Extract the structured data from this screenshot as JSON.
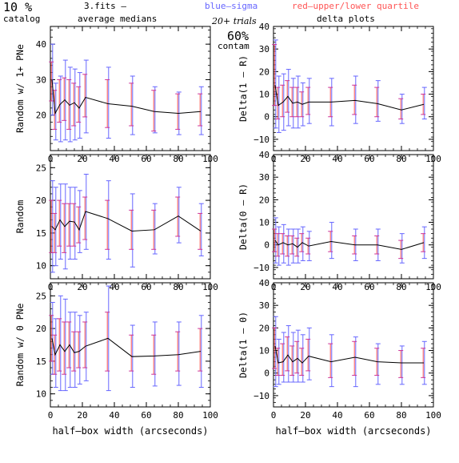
{
  "header": {
    "percent": "10 %",
    "catalog": "catalog",
    "fits": "3.fits  –",
    "avg": "average medians",
    "blue": "blue–sigma",
    "red": "red–upper/lower quartile",
    "trials": "20+ trials",
    "contam_pct": "60%",
    "contam": "contam",
    "delta": "delta plots"
  },
  "colors": {
    "blue": "#6666ff",
    "red": "#ff5555",
    "mag": "#cc3399",
    "line": "#000000"
  },
  "chart_data": [
    {
      "type": "line",
      "id": "p1",
      "ylabel": "Random w/ 1+ PNe",
      "xlabel": "",
      "xlim": [
        0,
        100
      ],
      "ylim": [
        10,
        45
      ],
      "xticks": [
        "0",
        "20",
        "40",
        "60",
        "80",
        "100"
      ],
      "yticks": [
        {
          "v": 20,
          "t": "20"
        },
        {
          "v": 30,
          "t": "30"
        },
        {
          "v": 40,
          "t": "40"
        }
      ],
      "x": [
        1,
        3,
        6,
        9,
        12,
        15,
        18,
        22,
        36,
        51,
        65,
        80,
        94
      ],
      "y": [
        30,
        20.5,
        23,
        24.3,
        22.8,
        23.5,
        22,
        25,
        23.2,
        22.5,
        21,
        20.5,
        21
      ],
      "sigma_lo": [
        20,
        13,
        12.5,
        13,
        12.5,
        13,
        13.5,
        15,
        13.5,
        14.5,
        15,
        14.5,
        14.5
      ],
      "sigma_hi": [
        40,
        29,
        31,
        35.5,
        33.5,
        33,
        32,
        35.5,
        33.5,
        31,
        28,
        26.5,
        28
      ],
      "q_lo": [
        24,
        16,
        18,
        18.5,
        16,
        17,
        18,
        19.5,
        16.5,
        17,
        15.5,
        16,
        17
      ],
      "q_hi": [
        35,
        27,
        30,
        30.5,
        30,
        29,
        28,
        31.5,
        30,
        29,
        27,
        26,
        26
      ]
    },
    {
      "type": "line",
      "id": "p2",
      "ylabel": "Delta(1 – R)",
      "xlabel": "",
      "xlim": [
        0,
        100
      ],
      "ylim": [
        -15,
        40
      ],
      "xticks": [
        "0",
        "20",
        "40",
        "60",
        "80",
        "100"
      ],
      "yticks": [
        {
          "v": -10,
          "t": "−10"
        },
        {
          "v": 0,
          "t": "0"
        },
        {
          "v": 10,
          "t": "10"
        },
        {
          "v": 20,
          "t": "20"
        },
        {
          "v": 30,
          "t": "30"
        },
        {
          "v": 40,
          "t": "40"
        }
      ],
      "x": [
        1,
        3,
        6,
        9,
        12,
        15,
        18,
        22,
        36,
        51,
        65,
        80,
        94
      ],
      "y": [
        14,
        5,
        6.5,
        9,
        6,
        6.5,
        5.5,
        6.5,
        6.5,
        7.2,
        5.8,
        3,
        5.5
      ],
      "sigma_lo": [
        -5,
        -7,
        -6,
        -4,
        -5,
        -5,
        -4,
        -3,
        -4,
        -3,
        -2,
        -3,
        -1
      ],
      "sigma_hi": [
        34,
        18,
        19,
        21,
        17,
        18,
        15,
        17,
        17,
        18,
        16,
        10,
        13
      ],
      "q_lo": [
        5,
        -1,
        0,
        2,
        0,
        0,
        0,
        1,
        0,
        1,
        0,
        -1,
        1
      ],
      "q_hi": [
        32,
        13,
        14,
        16,
        13,
        13,
        11,
        13,
        13,
        14,
        13,
        8,
        10
      ]
    },
    {
      "type": "line",
      "id": "p3",
      "ylabel": "Random",
      "xlabel": "",
      "xlim": [
        0,
        100
      ],
      "ylim": [
        8,
        27
      ],
      "xticks": [
        "0",
        "20",
        "40",
        "60",
        "80",
        "100"
      ],
      "yticks": [
        {
          "v": 10,
          "t": "10"
        },
        {
          "v": 15,
          "t": "15"
        },
        {
          "v": 20,
          "t": "20"
        },
        {
          "v": 25,
          "t": "25"
        }
      ],
      "x": [
        1,
        3,
        6,
        9,
        12,
        15,
        18,
        22,
        36,
        51,
        65,
        80,
        94
      ],
      "y": [
        16,
        15.5,
        17,
        16,
        16.8,
        16.7,
        15.5,
        18.3,
        17.2,
        15.3,
        15.5,
        17.6,
        15.3
      ],
      "sigma_lo": [
        9,
        10,
        11,
        9.5,
        11,
        11,
        12,
        12.5,
        11,
        9.8,
        11.8,
        13.5,
        11.5
      ],
      "sigma_hi": [
        23,
        22,
        22.5,
        22.5,
        22,
        22,
        21.5,
        24,
        23,
        21,
        19.5,
        22,
        19.5
      ],
      "q_lo": [
        12,
        12,
        13,
        12,
        13,
        13,
        13.5,
        14,
        12.5,
        12.5,
        12.5,
        14.5,
        12.5
      ],
      "q_hi": [
        20,
        18,
        20,
        19.5,
        19.5,
        19.5,
        19,
        20.5,
        20,
        18.5,
        18.5,
        20.5,
        18
      ]
    },
    {
      "type": "line",
      "id": "p4",
      "ylabel": "Delta(0 – R)",
      "xlabel": "",
      "xlim": [
        0,
        100
      ],
      "ylim": [
        -15,
        40
      ],
      "xticks": [
        "0",
        "20",
        "40",
        "60",
        "80",
        "100"
      ],
      "yticks": [
        {
          "v": -10,
          "t": "−10"
        },
        {
          "v": 0,
          "t": "0"
        },
        {
          "v": 10,
          "t": "10"
        },
        {
          "v": 20,
          "t": "20"
        },
        {
          "v": 30,
          "t": "30"
        },
        {
          "v": 40,
          "t": "40"
        }
      ],
      "x": [
        1,
        3,
        6,
        9,
        12,
        15,
        18,
        22,
        36,
        51,
        65,
        80,
        94
      ],
      "y": [
        2,
        0,
        1,
        0,
        0.5,
        -1,
        1,
        -0.5,
        1.5,
        0,
        0,
        -2,
        1
      ],
      "sigma_lo": [
        -8,
        -9,
        -8,
        -9,
        -8,
        -8,
        -7,
        -7,
        -6,
        -7,
        -7,
        -8,
        -6
      ],
      "sigma_hi": [
        12,
        8,
        9,
        7,
        7,
        7,
        8,
        6,
        10,
        7,
        7,
        5,
        8
      ],
      "q_lo": [
        -3,
        -5,
        -4,
        -5,
        -4,
        -5,
        -3,
        -4,
        -3,
        -4,
        -4,
        -6,
        -3
      ],
      "q_hi": [
        7,
        5,
        5,
        4,
        4,
        3,
        5,
        3,
        6,
        4,
        4,
        2,
        5
      ]
    },
    {
      "type": "line",
      "id": "p5",
      "ylabel": "Random w/ 0 PNe",
      "xlabel": "half–box width (arcseconds)",
      "xlim": [
        0,
        100
      ],
      "ylim": [
        8,
        27
      ],
      "xticks": [
        "0",
        "20",
        "40",
        "60",
        "80",
        "100"
      ],
      "yticks": [
        {
          "v": 10,
          "t": "10"
        },
        {
          "v": 15,
          "t": "15"
        },
        {
          "v": 20,
          "t": "20"
        },
        {
          "v": 25,
          "t": "25"
        }
      ],
      "x": [
        1,
        3,
        6,
        9,
        12,
        15,
        18,
        22,
        36,
        51,
        65,
        80,
        94
      ],
      "y": [
        18.5,
        16,
        17.5,
        16.5,
        17.5,
        16.3,
        16.5,
        17.3,
        18.5,
        15.7,
        15.8,
        16.0,
        16.5
      ],
      "sigma_lo": [
        13,
        11,
        10.5,
        10.5,
        11,
        11,
        11.5,
        12,
        10.5,
        11,
        11.2,
        11.3,
        11
      ],
      "sigma_hi": [
        24,
        21.5,
        25,
        24.5,
        22.5,
        22.5,
        22,
        22.5,
        26.5,
        20.5,
        21,
        21,
        22
      ],
      "q_lo": [
        15,
        13,
        13.5,
        13,
        14,
        13.5,
        14,
        14,
        13.5,
        13.5,
        13,
        13.5,
        13.5
      ],
      "q_hi": [
        22,
        19,
        21.5,
        21,
        21,
        19.5,
        19.5,
        21,
        22.5,
        19,
        19,
        19.5,
        20
      ]
    },
    {
      "type": "line",
      "id": "p6",
      "ylabel": "Delta(1 – 0)",
      "xlabel": "half–box width (arcseconds)",
      "xlim": [
        0,
        100
      ],
      "ylim": [
        -15,
        40
      ],
      "xticks": [
        "0",
        "20",
        "40",
        "60",
        "80",
        "100"
      ],
      "yticks": [
        {
          "v": -10,
          "t": "−10"
        },
        {
          "v": 0,
          "t": "0"
        },
        {
          "v": 10,
          "t": "10"
        },
        {
          "v": 20,
          "t": "20"
        },
        {
          "v": 30,
          "t": "30"
        },
        {
          "v": 40,
          "t": "40"
        }
      ],
      "x": [
        1,
        3,
        6,
        9,
        12,
        15,
        18,
        22,
        36,
        51,
        65,
        80,
        94
      ],
      "y": [
        12,
        4.5,
        5,
        8,
        5,
        6.5,
        4.5,
        7.5,
        5,
        7,
        5,
        4.5,
        4.5
      ],
      "sigma_lo": [
        -6,
        -5,
        -4,
        -4,
        -4,
        -4,
        -4,
        -3,
        -6,
        -6,
        -5,
        -5,
        -5
      ],
      "sigma_hi": [
        25,
        15,
        18,
        21,
        18,
        19,
        17,
        20,
        17,
        16,
        13,
        12,
        14
      ],
      "q_lo": [
        2,
        -1,
        -1,
        1,
        -1,
        0,
        -1,
        1,
        -2,
        -1,
        -1,
        -2,
        -2
      ],
      "q_hi": [
        20,
        11,
        13,
        16,
        12,
        14,
        11,
        15,
        13,
        14,
        11,
        10,
        11
      ]
    }
  ]
}
